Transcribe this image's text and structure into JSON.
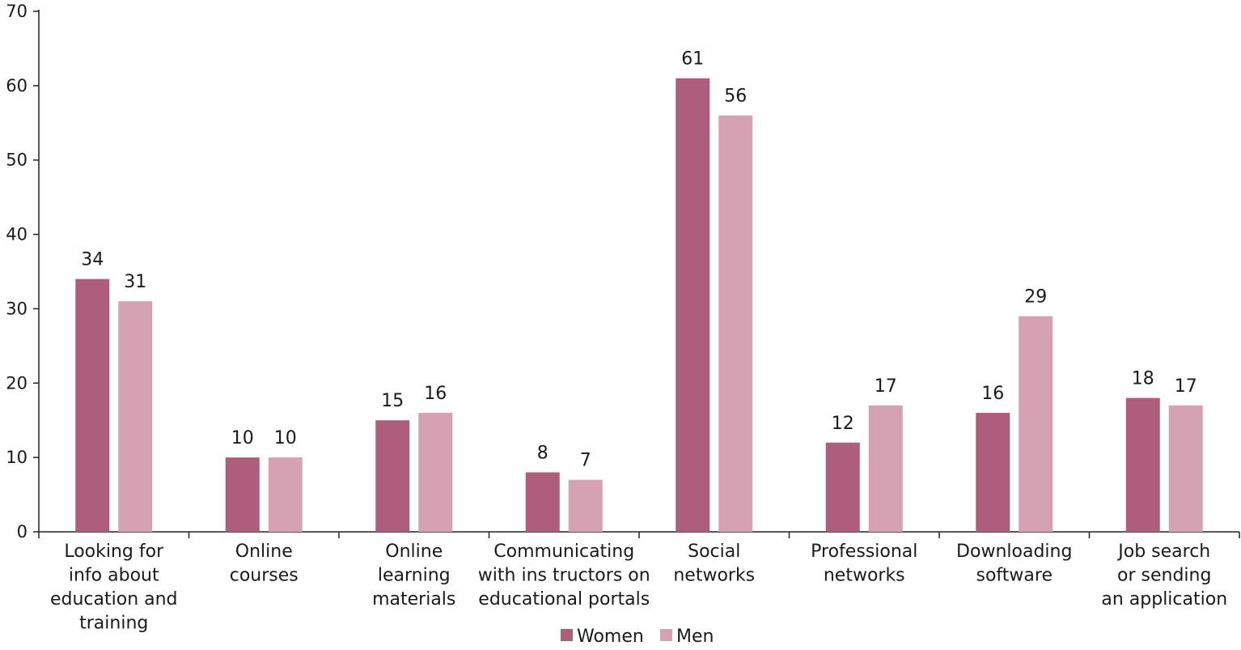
{
  "chart_data": {
    "type": "bar",
    "categories": [
      [
        "Looking for",
        "info about",
        "education and",
        "training"
      ],
      [
        "Online",
        "courses"
      ],
      [
        "Online",
        "learning",
        "materials"
      ],
      [
        "Communicating",
        "with ins tructors on",
        "educational portals"
      ],
      [
        "Social",
        "networks"
      ],
      [
        "Professional",
        "networks"
      ],
      [
        "Downloading",
        "software"
      ],
      [
        "Job search",
        "or sending",
        "an application"
      ]
    ],
    "series": [
      {
        "name": "Women",
        "color": "#ad5e7b",
        "values": [
          34,
          10,
          15,
          8,
          61,
          12,
          16,
          18
        ]
      },
      {
        "name": "Men",
        "color": "#d5a2b3",
        "values": [
          31,
          10,
          16,
          7,
          56,
          17,
          29,
          17
        ]
      }
    ],
    "ylim": [
      0,
      70
    ],
    "yticks": [
      0,
      10,
      20,
      30,
      40,
      50,
      60,
      70
    ],
    "data_labels": true,
    "grid": false,
    "legend_position": "bottom-center"
  }
}
